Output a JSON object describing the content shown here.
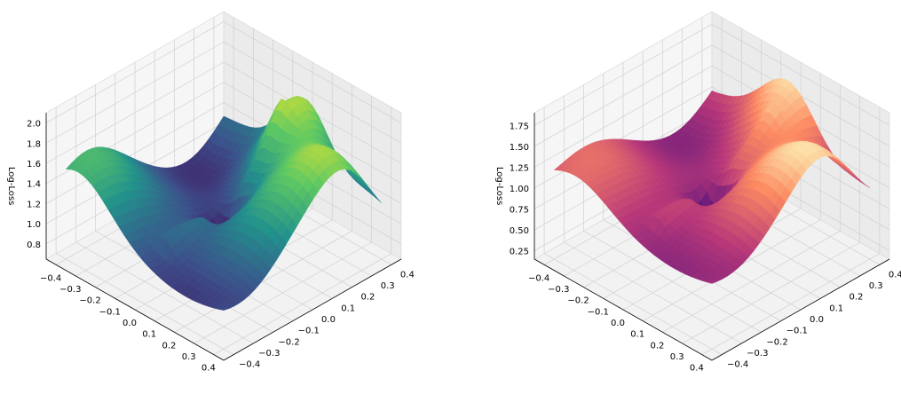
{
  "chart_data": [
    {
      "type": "surface3d",
      "title": "",
      "zlabel": "Log-Loss",
      "colormap": "viridis",
      "colors": [
        "#440154",
        "#3b528b",
        "#21918c",
        "#5ec962",
        "#fde725"
      ],
      "x_ticks": [
        "−0.4",
        "−0.3",
        "−0.2",
        "−0.1",
        "0.0",
        "0.1",
        "0.2",
        "0.3",
        "0.4"
      ],
      "y_ticks": [
        "−0.4",
        "−0.3",
        "−0.2",
        "−0.1",
        "0.0",
        "0.1",
        "0.2",
        "0.3",
        "0.4"
      ],
      "z_ticks": [
        "0.8",
        "1.0",
        "1.2",
        "1.4",
        "1.6",
        "1.8",
        "2.0"
      ],
      "xlim": [
        -0.45,
        0.45
      ],
      "ylim": [
        -0.45,
        0.45
      ],
      "zlim": [
        0.65,
        2.1
      ],
      "surface": {
        "base": 1.15,
        "ridges": [
          {
            "x": 0.02,
            "y": -0.35,
            "w": 0.12,
            "h": 0.85
          },
          {
            "x": 0.32,
            "y": -0.25,
            "w": 0.14,
            "h": 0.55
          },
          {
            "x": -0.35,
            "y": 0.32,
            "w": 0.16,
            "h": 0.55
          }
        ],
        "minimum": {
          "x": 0.0,
          "y": 0.0,
          "depth": 0.45
        },
        "z_range": [
          0.72,
          2.05
        ]
      }
    },
    {
      "type": "surface3d",
      "title": "",
      "zlabel": "Log-Loss",
      "colormap": "magma",
      "colors": [
        "#000004",
        "#51127c",
        "#b73779",
        "#fc8961",
        "#fcfdbf"
      ],
      "x_ticks": [
        "−0.4",
        "−0.3",
        "−0.2",
        "−0.1",
        "0.0",
        "0.1",
        "0.2",
        "0.3",
        "0.4"
      ],
      "y_ticks": [
        "−0.4",
        "−0.3",
        "−0.2",
        "−0.1",
        "0.0",
        "0.1",
        "0.2",
        "0.3",
        "0.4"
      ],
      "z_ticks": [
        "0.25",
        "0.50",
        "0.75",
        "1.00",
        "1.25",
        "1.50",
        "1.75"
      ],
      "xlim": [
        -0.45,
        0.45
      ],
      "ylim": [
        -0.45,
        0.45
      ],
      "zlim": [
        0.15,
        1.9
      ],
      "surface": {
        "base": 1.05,
        "ridges": [
          {
            "x": 0.0,
            "y": -0.4,
            "w": 0.14,
            "h": 0.8
          },
          {
            "x": 0.35,
            "y": -0.2,
            "w": 0.14,
            "h": 0.45
          },
          {
            "x": -0.3,
            "y": 0.3,
            "w": 0.16,
            "h": 0.35
          }
        ],
        "minimum": {
          "x": 0.02,
          "y": 0.02,
          "depth": 0.75
        },
        "z_range": [
          0.2,
          1.85
        ]
      }
    }
  ]
}
